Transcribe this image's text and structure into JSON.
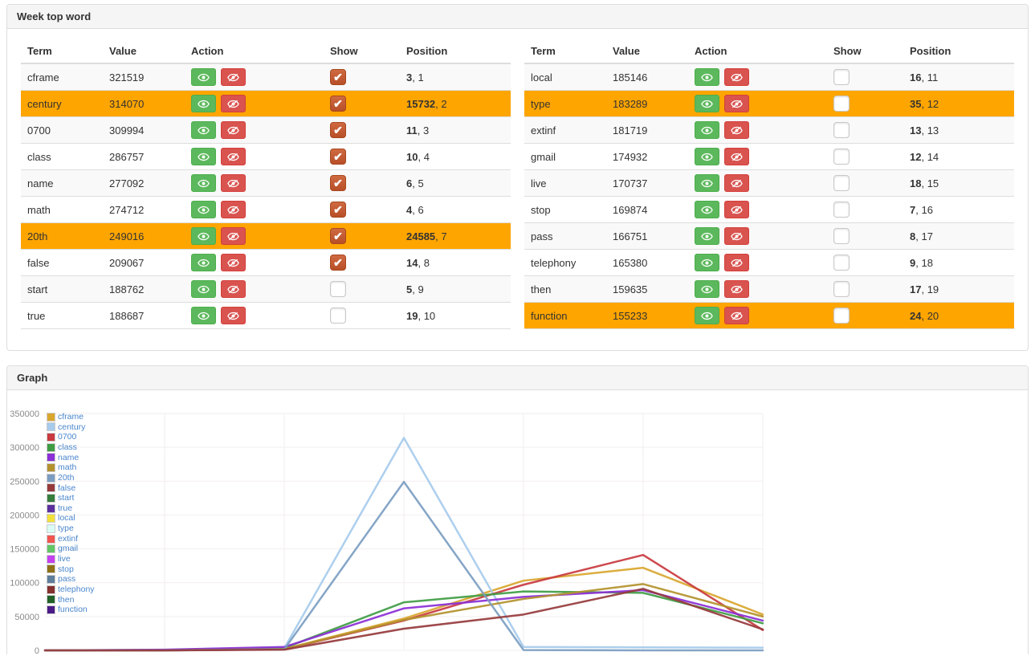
{
  "panels": {
    "words": {
      "title": "Week top word"
    },
    "graph": {
      "title": "Graph"
    }
  },
  "table": {
    "headers": [
      "Term",
      "Value",
      "Action",
      "Show",
      "Position"
    ],
    "action_buttons": {
      "show_icon": "eye-icon",
      "hide_icon": "eye-slash-icon"
    },
    "left_rows": [
      {
        "term": "cframe",
        "value": "321519",
        "checked": true,
        "pos_main": "3",
        "pos_sub": "1",
        "highlighted": false
      },
      {
        "term": "century",
        "value": "314070",
        "checked": true,
        "pos_main": "15732",
        "pos_sub": "2",
        "highlighted": true
      },
      {
        "term": "0700",
        "value": "309994",
        "checked": true,
        "pos_main": "11",
        "pos_sub": "3",
        "highlighted": false
      },
      {
        "term": "class",
        "value": "286757",
        "checked": true,
        "pos_main": "10",
        "pos_sub": "4",
        "highlighted": false
      },
      {
        "term": "name",
        "value": "277092",
        "checked": true,
        "pos_main": "6",
        "pos_sub": "5",
        "highlighted": false
      },
      {
        "term": "math",
        "value": "274712",
        "checked": true,
        "pos_main": "4",
        "pos_sub": "6",
        "highlighted": false
      },
      {
        "term": "20th",
        "value": "249016",
        "checked": true,
        "pos_main": "24585",
        "pos_sub": "7",
        "highlighted": true
      },
      {
        "term": "false",
        "value": "209067",
        "checked": true,
        "pos_main": "14",
        "pos_sub": "8",
        "highlighted": false
      },
      {
        "term": "start",
        "value": "188762",
        "checked": false,
        "pos_main": "5",
        "pos_sub": "9",
        "highlighted": false
      },
      {
        "term": "true",
        "value": "188687",
        "checked": false,
        "pos_main": "19",
        "pos_sub": "10",
        "highlighted": false
      }
    ],
    "right_rows": [
      {
        "term": "local",
        "value": "185146",
        "checked": false,
        "pos_main": "16",
        "pos_sub": "11",
        "highlighted": false
      },
      {
        "term": "type",
        "value": "183289",
        "checked": false,
        "pos_main": "35",
        "pos_sub": "12",
        "highlighted": true
      },
      {
        "term": "extinf",
        "value": "181719",
        "checked": false,
        "pos_main": "13",
        "pos_sub": "13",
        "highlighted": false
      },
      {
        "term": "gmail",
        "value": "174932",
        "checked": false,
        "pos_main": "12",
        "pos_sub": "14",
        "highlighted": false
      },
      {
        "term": "live",
        "value": "170737",
        "checked": false,
        "pos_main": "18",
        "pos_sub": "15",
        "highlighted": false
      },
      {
        "term": "stop",
        "value": "169874",
        "checked": false,
        "pos_main": "7",
        "pos_sub": "16",
        "highlighted": false
      },
      {
        "term": "pass",
        "value": "166751",
        "checked": false,
        "pos_main": "8",
        "pos_sub": "17",
        "highlighted": false
      },
      {
        "term": "telephony",
        "value": "165380",
        "checked": false,
        "pos_main": "9",
        "pos_sub": "18",
        "highlighted": false
      },
      {
        "term": "then",
        "value": "159635",
        "checked": false,
        "pos_main": "17",
        "pos_sub": "19",
        "highlighted": false
      },
      {
        "term": "function",
        "value": "155233",
        "checked": false,
        "pos_main": "24",
        "pos_sub": "20",
        "highlighted": true
      }
    ]
  },
  "colors": {
    "highlight_row": "#ffa500",
    "show_button": "#5cb85c",
    "hide_button": "#d9534f",
    "checkbox_checked": "#bf5329",
    "grid": "#f2eeee",
    "tick_label": "#8a8a8a"
  },
  "chart_data": {
    "type": "line",
    "x": [
      1,
      2,
      3,
      4,
      5,
      6,
      7
    ],
    "ylim": [
      0,
      350000
    ],
    "yticks": [
      0,
      50000,
      100000,
      150000,
      200000,
      250000,
      300000,
      350000
    ],
    "grid": true,
    "legend_position": "top-left",
    "series": [
      {
        "name": "cframe",
        "color": "#d9a62e",
        "values": [
          0,
          0,
          2000,
          47000,
          103000,
          122000,
          53000
        ]
      },
      {
        "name": "century",
        "color": "#a6cbec",
        "values": [
          0,
          0,
          3000,
          314000,
          5000,
          4500,
          4000
        ]
      },
      {
        "name": "0700",
        "color": "#c9393f",
        "values": [
          0,
          0,
          1500,
          44000,
          97000,
          141000,
          30000
        ]
      },
      {
        "name": "class",
        "color": "#3f9c44",
        "values": [
          0,
          500,
          3500,
          71000,
          87000,
          85000,
          40000
        ]
      },
      {
        "name": "name",
        "color": "#8b2fd6",
        "values": [
          0,
          1000,
          5000,
          62000,
          79000,
          89000,
          44000
        ]
      },
      {
        "name": "math",
        "color": "#b3922e",
        "values": [
          0,
          0,
          2000,
          45000,
          76000,
          98000,
          50000
        ]
      },
      {
        "name": "20th",
        "color": "#7b9dc1",
        "values": [
          0,
          0,
          1500,
          249000,
          500,
          0,
          0
        ]
      },
      {
        "name": "false",
        "color": "#963a3c",
        "values": [
          0,
          0,
          1000,
          32000,
          53000,
          91000,
          31000
        ]
      },
      {
        "name": "start",
        "color": "#377d3c",
        "values": []
      },
      {
        "name": "true",
        "color": "#5c2f9e",
        "values": []
      },
      {
        "name": "local",
        "color": "#f2e03a",
        "values": []
      },
      {
        "name": "type",
        "color": "#d8fbf4",
        "values": []
      },
      {
        "name": "extinf",
        "color": "#f05550",
        "values": []
      },
      {
        "name": "gmail",
        "color": "#61c565",
        "values": []
      },
      {
        "name": "live",
        "color": "#c341ef",
        "values": []
      },
      {
        "name": "stop",
        "color": "#8e7119",
        "values": []
      },
      {
        "name": "pass",
        "color": "#5e7e9b",
        "values": []
      },
      {
        "name": "telephony",
        "color": "#84312f",
        "values": []
      },
      {
        "name": "then",
        "color": "#226128",
        "values": []
      },
      {
        "name": "function",
        "color": "#4a1b87",
        "values": []
      }
    ]
  }
}
